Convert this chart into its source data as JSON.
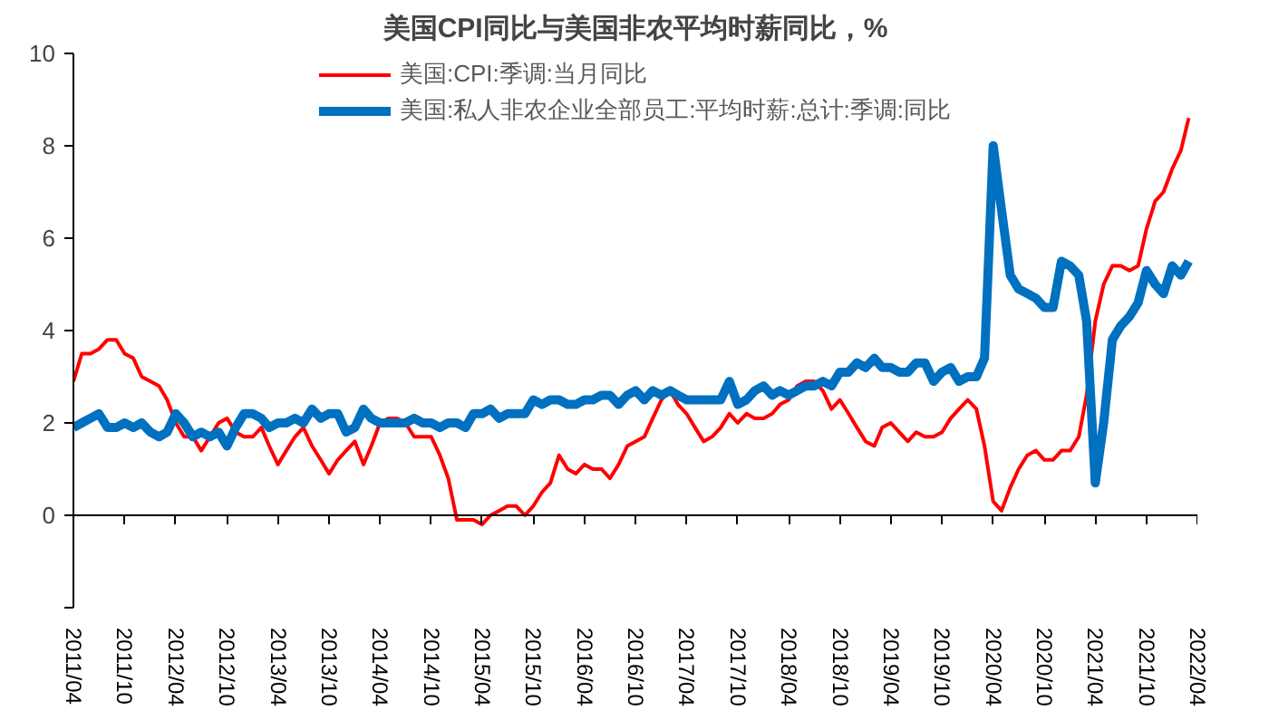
{
  "chart_data": {
    "type": "line",
    "title": "美国CPI同比与美国非农平均时薪同比，%",
    "x": [
      "2011-04",
      "2011-05",
      "2011-06",
      "2011-07",
      "2011-08",
      "2011-09",
      "2011-10",
      "2011-11",
      "2011-12",
      "2012-01",
      "2012-02",
      "2012-03",
      "2012-04",
      "2012-05",
      "2012-06",
      "2012-07",
      "2012-08",
      "2012-09",
      "2012-10",
      "2012-11",
      "2012-12",
      "2013-01",
      "2013-02",
      "2013-03",
      "2013-04",
      "2013-05",
      "2013-06",
      "2013-07",
      "2013-08",
      "2013-09",
      "2013-10",
      "2013-11",
      "2013-12",
      "2014-01",
      "2014-02",
      "2014-03",
      "2014-04",
      "2014-05",
      "2014-06",
      "2014-07",
      "2014-08",
      "2014-09",
      "2014-10",
      "2014-11",
      "2014-12",
      "2015-01",
      "2015-02",
      "2015-03",
      "2015-04",
      "2015-05",
      "2015-06",
      "2015-07",
      "2015-08",
      "2015-09",
      "2015-10",
      "2015-11",
      "2015-12",
      "2016-01",
      "2016-02",
      "2016-03",
      "2016-04",
      "2016-05",
      "2016-06",
      "2016-07",
      "2016-08",
      "2016-09",
      "2016-10",
      "2016-11",
      "2016-12",
      "2017-01",
      "2017-02",
      "2017-03",
      "2017-04",
      "2017-05",
      "2017-06",
      "2017-07",
      "2017-08",
      "2017-09",
      "2017-10",
      "2017-11",
      "2017-12",
      "2018-01",
      "2018-02",
      "2018-03",
      "2018-04",
      "2018-05",
      "2018-06",
      "2018-07",
      "2018-08",
      "2018-09",
      "2018-10",
      "2018-11",
      "2018-12",
      "2019-01",
      "2019-02",
      "2019-03",
      "2019-04",
      "2019-05",
      "2019-06",
      "2019-07",
      "2019-08",
      "2019-09",
      "2019-10",
      "2019-11",
      "2019-12",
      "2020-01",
      "2020-02",
      "2020-03",
      "2020-04",
      "2020-05",
      "2020-06",
      "2020-07",
      "2020-08",
      "2020-09",
      "2020-10",
      "2020-11",
      "2020-12",
      "2021-01",
      "2021-02",
      "2021-03",
      "2021-04",
      "2021-05",
      "2021-06",
      "2021-07",
      "2021-08",
      "2021-09",
      "2021-10",
      "2021-11",
      "2021-12",
      "2022-01",
      "2022-02",
      "2022-03"
    ],
    "series": [
      {
        "name": "美国:CPI:季调:当月同比",
        "color": "#ff0000",
        "values": [
          2.9,
          3.5,
          3.5,
          3.6,
          3.8,
          3.8,
          3.5,
          3.4,
          3.0,
          2.9,
          2.8,
          2.5,
          2.0,
          1.7,
          1.7,
          1.4,
          1.7,
          2.0,
          2.1,
          1.8,
          1.7,
          1.7,
          1.9,
          1.5,
          1.1,
          1.4,
          1.7,
          1.9,
          1.5,
          1.2,
          0.9,
          1.2,
          1.4,
          1.6,
          1.1,
          1.5,
          2.0,
          2.1,
          2.1,
          2.0,
          1.7,
          1.7,
          1.7,
          1.3,
          0.8,
          -0.1,
          -0.1,
          -0.1,
          -0.2,
          0.0,
          0.1,
          0.2,
          0.2,
          0.0,
          0.2,
          0.5,
          0.7,
          1.3,
          1.0,
          0.9,
          1.1,
          1.0,
          1.0,
          0.8,
          1.1,
          1.5,
          1.6,
          1.7,
          2.1,
          2.5,
          2.7,
          2.4,
          2.2,
          1.9,
          1.6,
          1.7,
          1.9,
          2.2,
          2.0,
          2.2,
          2.1,
          2.1,
          2.2,
          2.4,
          2.5,
          2.8,
          2.9,
          2.9,
          2.7,
          2.3,
          2.5,
          2.2,
          1.9,
          1.6,
          1.5,
          1.9,
          2.0,
          1.8,
          1.6,
          1.8,
          1.7,
          1.7,
          1.8,
          2.1,
          2.3,
          2.5,
          2.3,
          1.5,
          0.3,
          0.1,
          0.6,
          1.0,
          1.3,
          1.4,
          1.2,
          1.2,
          1.4,
          1.4,
          1.7,
          2.6,
          4.2,
          5.0,
          5.4,
          5.4,
          5.3,
          5.4,
          6.2,
          6.8,
          7.0,
          7.5,
          7.9,
          8.6
        ]
      },
      {
        "name": "美国:私人非农企业全部员工:平均时薪:总计:季调:同比",
        "color": "#0070c0",
        "values": [
          1.9,
          2.0,
          2.1,
          2.2,
          1.9,
          1.9,
          2.0,
          1.9,
          2.0,
          1.8,
          1.7,
          1.8,
          2.2,
          2.0,
          1.7,
          1.8,
          1.7,
          1.8,
          1.5,
          1.9,
          2.2,
          2.2,
          2.1,
          1.9,
          2.0,
          2.0,
          2.1,
          2.0,
          2.3,
          2.1,
          2.2,
          2.2,
          1.8,
          1.9,
          2.3,
          2.1,
          2.0,
          2.0,
          2.0,
          2.0,
          2.1,
          2.0,
          2.0,
          1.9,
          2.0,
          2.0,
          1.9,
          2.2,
          2.2,
          2.3,
          2.1,
          2.2,
          2.2,
          2.2,
          2.5,
          2.4,
          2.5,
          2.5,
          2.4,
          2.4,
          2.5,
          2.5,
          2.6,
          2.6,
          2.4,
          2.6,
          2.7,
          2.5,
          2.7,
          2.6,
          2.7,
          2.6,
          2.5,
          2.5,
          2.5,
          2.5,
          2.5,
          2.9,
          2.4,
          2.5,
          2.7,
          2.8,
          2.6,
          2.7,
          2.6,
          2.7,
          2.8,
          2.8,
          2.9,
          2.8,
          3.1,
          3.1,
          3.3,
          3.2,
          3.4,
          3.2,
          3.2,
          3.1,
          3.1,
          3.3,
          3.3,
          2.9,
          3.1,
          3.2,
          2.9,
          3.0,
          3.0,
          3.4,
          8.0,
          6.6,
          5.2,
          4.9,
          4.8,
          4.7,
          4.5,
          4.5,
          5.5,
          5.4,
          5.2,
          4.2,
          0.7,
          2.0,
          3.8,
          4.1,
          4.3,
          4.6,
          5.3,
          5.0,
          4.8,
          5.4,
          5.2,
          5.5
        ]
      }
    ],
    "xlim": [
      "2011-04",
      "2022-04"
    ],
    "xticks": [
      {
        "value": "2011-04",
        "label": "2011/04"
      },
      {
        "value": "2011-10",
        "label": "2011/10"
      },
      {
        "value": "2012-04",
        "label": "2012/04"
      },
      {
        "value": "2012-10",
        "label": "2012/10"
      },
      {
        "value": "2013-04",
        "label": "2013/04"
      },
      {
        "value": "2013-10",
        "label": "2013/10"
      },
      {
        "value": "2014-04",
        "label": "2014/04"
      },
      {
        "value": "2014-10",
        "label": "2014/10"
      },
      {
        "value": "2015-04",
        "label": "2015/04"
      },
      {
        "value": "2015-10",
        "label": "2015/10"
      },
      {
        "value": "2016-04",
        "label": "2016/04"
      },
      {
        "value": "2016-10",
        "label": "2016/10"
      },
      {
        "value": "2017-04",
        "label": "2017/04"
      },
      {
        "value": "2017-10",
        "label": "2017/10"
      },
      {
        "value": "2018-04",
        "label": "2018/04"
      },
      {
        "value": "2018-10",
        "label": "2018/10"
      },
      {
        "value": "2019-04",
        "label": "2019/04"
      },
      {
        "value": "2019-10",
        "label": "2019/10"
      },
      {
        "value": "2020-04",
        "label": "2020/04"
      },
      {
        "value": "2020-10",
        "label": "2020/10"
      },
      {
        "value": "2021-04",
        "label": "2021/04"
      },
      {
        "value": "2021-10",
        "label": "2021/10"
      },
      {
        "value": "2022-04",
        "label": "2022/04"
      }
    ],
    "ylim": [
      -2,
      10
    ],
    "yticks": [
      {
        "value": -2,
        "label": null
      },
      0,
      2,
      4,
      6,
      8,
      10
    ],
    "legend": "top",
    "line_style": "solid",
    "marker": "none"
  }
}
